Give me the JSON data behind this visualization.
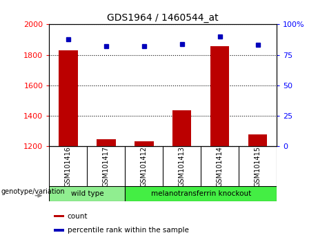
{
  "title": "GDS1964 / 1460544_at",
  "samples": [
    "GSM101416",
    "GSM101417",
    "GSM101412",
    "GSM101413",
    "GSM101414",
    "GSM101415"
  ],
  "counts": [
    1830,
    1248,
    1232,
    1435,
    1858,
    1278
  ],
  "percentile_ranks": [
    88,
    82,
    82,
    84,
    90,
    83
  ],
  "groups": [
    {
      "label": "wild type",
      "indices": [
        0,
        1
      ],
      "color": "#90ee90"
    },
    {
      "label": "melanotransferrin knockout",
      "indices": [
        2,
        3,
        4,
        5
      ],
      "color": "#44ee44"
    }
  ],
  "ylim_left": [
    1200,
    2000
  ],
  "ylim_right": [
    0,
    100
  ],
  "yticks_left": [
    1200,
    1400,
    1600,
    1800,
    2000
  ],
  "yticks_right": [
    0,
    25,
    50,
    75,
    100
  ],
  "bar_color": "#bb0000",
  "marker_color": "#0000bb",
  "bar_width": 0.5,
  "grid_color": "black",
  "bg_color": "#ffffff",
  "sample_box_color": "#cccccc",
  "group_label": "genotype/variation",
  "legend_items": [
    {
      "label": "count",
      "color": "#bb0000"
    },
    {
      "label": "percentile rank within the sample",
      "color": "#0000bb"
    }
  ]
}
